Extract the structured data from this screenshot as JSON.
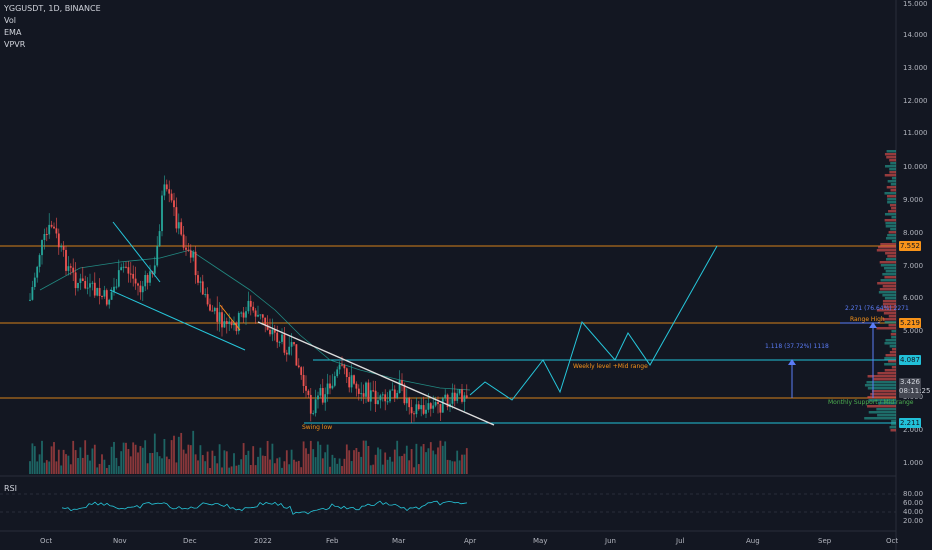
{
  "header": {
    "symbol_line": "YGGUSDT, 1D, BINANCE",
    "indicators": [
      "Vol",
      "EMA",
      "VPVR"
    ]
  },
  "rsi_pane": {
    "label": "RSI",
    "axis_labels": [
      "80.00",
      "60.00",
      "40.00",
      "20.00"
    ]
  },
  "price_axis": {
    "labels": [
      "15.000",
      "14.000",
      "13.000",
      "12.000",
      "11.000",
      "10.000",
      "9.000",
      "8.000",
      "7.000",
      "6.000",
      "5.000",
      "3.000",
      "2.000",
      "1.000"
    ]
  },
  "time_axis": {
    "labels": [
      "Oct",
      "Nov",
      "Dec",
      "2022",
      "Feb",
      "Mar",
      "Apr",
      "May",
      "Jun",
      "Jul",
      "Aug",
      "Sep",
      "Oct"
    ]
  },
  "level_badges": {
    "resistance_high": "7.552",
    "resistance_mid": "5.219",
    "weekly_level": "4.087",
    "last_price": "3.426",
    "countdown": "08:11:25",
    "swing_low": "2.211"
  },
  "annotations": {
    "swing_low": "Swing low",
    "weekly_level": "Weekly level +Mid range",
    "monthly_support": "Monthly Support / Mid range",
    "range_high": "Range High",
    "measure_small": "1.118 (37.72%) 1118",
    "measure_top": "2.271 (76.64%) 2271"
  },
  "colors": {
    "background": "#131722",
    "up_candle": "#26a69a",
    "down_candle": "#ef5350",
    "orange_level": "#f7931a",
    "cyan_level": "#22c0d8",
    "trendline": "#dddddd",
    "projection": "#26c6da",
    "rsi_line": "#26c6da"
  }
}
